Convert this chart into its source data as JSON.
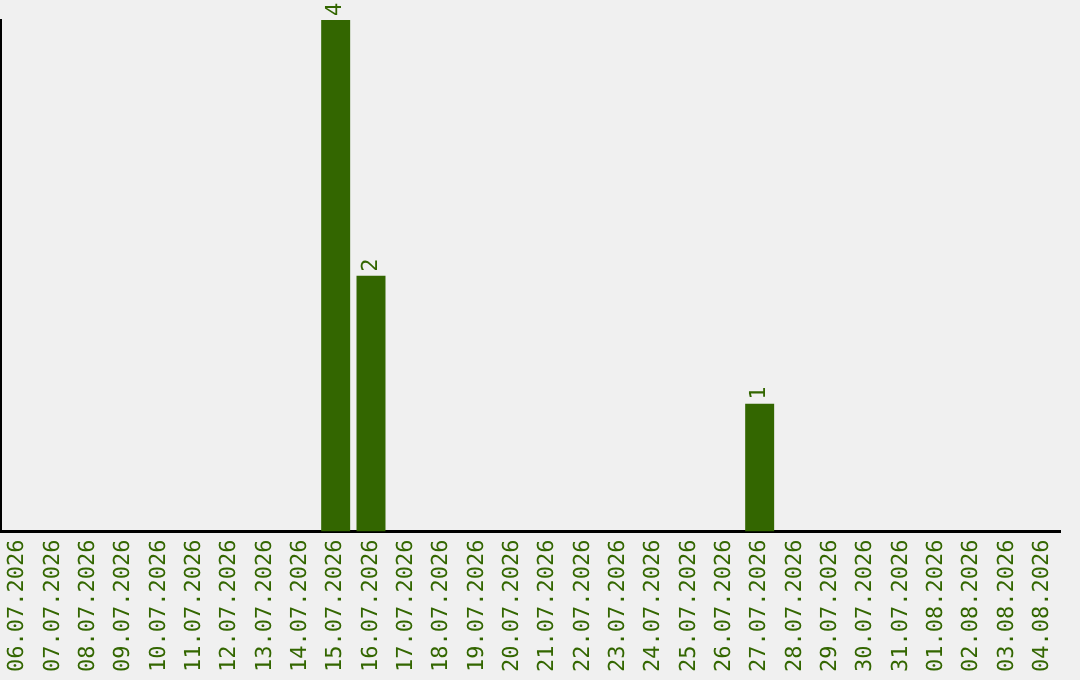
{
  "chart_data": {
    "type": "bar",
    "categories": [
      "06.07.2026",
      "07.07.2026",
      "08.07.2026",
      "09.07.2026",
      "10.07.2026",
      "11.07.2026",
      "12.07.2026",
      "13.07.2026",
      "14.07.2026",
      "15.07.2026",
      "16.07.2026",
      "17.07.2026",
      "18.07.2026",
      "19.07.2026",
      "20.07.2026",
      "21.07.2026",
      "22.07.2026",
      "23.07.2026",
      "24.07.2026",
      "25.07.2026",
      "26.07.2026",
      "27.07.2026",
      "28.07.2026",
      "29.07.2026",
      "30.07.2026",
      "31.07.2026",
      "01.08.2026",
      "02.08.2026",
      "03.08.2026",
      "04.08.2026"
    ],
    "values": [
      0,
      0,
      0,
      0,
      0,
      0,
      0,
      0,
      0,
      4,
      2,
      0,
      0,
      0,
      0,
      0,
      0,
      0,
      0,
      0,
      0,
      1,
      0,
      0,
      0,
      0,
      0,
      0,
      0,
      0
    ],
    "value_labels": [
      null,
      null,
      null,
      null,
      null,
      null,
      null,
      null,
      null,
      "4",
      "2",
      null,
      null,
      null,
      null,
      null,
      null,
      null,
      null,
      null,
      null,
      "1",
      null,
      null,
      null,
      null,
      null,
      null,
      null,
      null
    ],
    "color": "#336600",
    "grid": false,
    "legend": false,
    "tick_labels": "x"
  }
}
